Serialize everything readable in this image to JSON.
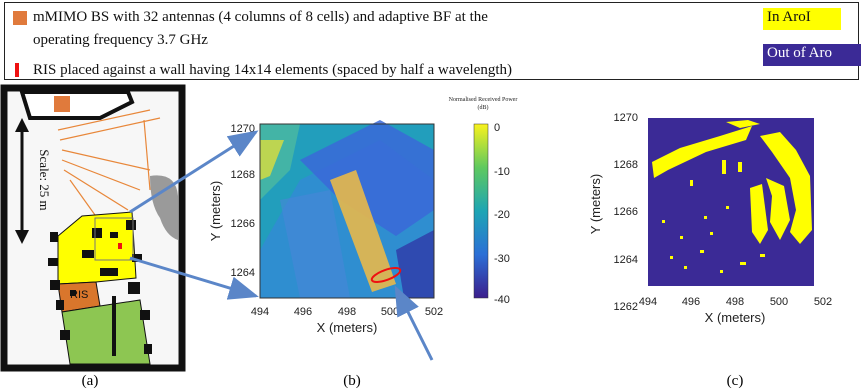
{
  "legend": {
    "bs_text_line1": "mMIMO BS with 32 antennas (4 columns of 8 cells) and adaptive BF at the",
    "bs_text_line2": "operating frequency 3.7 GHz",
    "ris_text": "RIS placed against a wall having 14x14 elements (spaced by half a wavelength)",
    "tag_in": "In AroI",
    "tag_out": "Out of Aro"
  },
  "map": {
    "scale_label": "Scale: 25 m",
    "ris_label": "RIS",
    "panel_label": "(a)"
  },
  "panel_b": {
    "colorbar_title_line1": "Normalised Received Power",
    "colorbar_title_line2": "(dB)",
    "colorbar_ticks": [
      "0",
      "-10",
      "-20",
      "-30",
      "-40"
    ],
    "x_ticks": [
      "494",
      "496",
      "498",
      "500",
      "502"
    ],
    "y_ticks": [
      "1270",
      "1268",
      "1266",
      "1264"
    ],
    "xlabel": "X (meters)",
    "ylabel": "Y (meters)",
    "panel_label": "(b)"
  },
  "panel_c": {
    "x_ticks": [
      "494",
      "496",
      "498",
      "500",
      "502"
    ],
    "y_ticks": [
      "1270",
      "1268",
      "1266",
      "1264",
      "1262"
    ],
    "xlabel": "X (meters)",
    "ylabel": "Y (meters)",
    "panel_label": "(c)"
  },
  "colors": {
    "yellow": "#ffff00",
    "indigo": "#3b2a96",
    "arrow": "#5b86c8",
    "ris_red": "#e11111"
  }
}
